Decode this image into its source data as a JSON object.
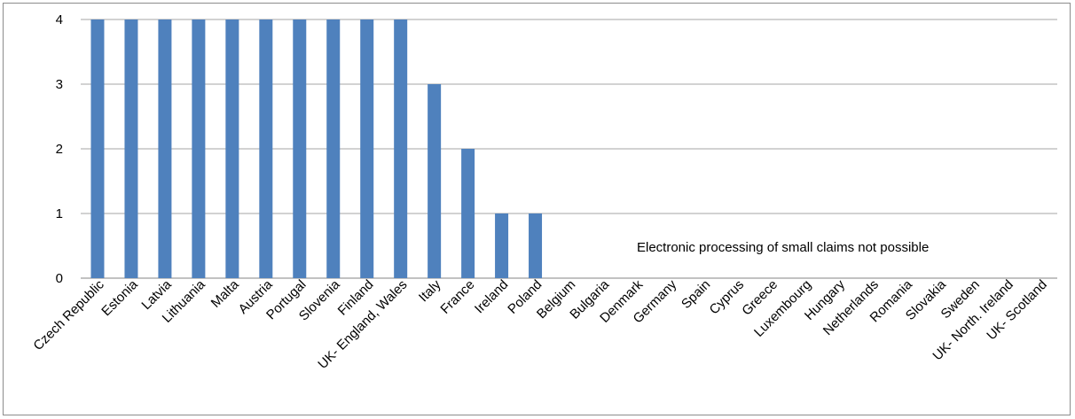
{
  "chart_data": {
    "type": "bar",
    "categories": [
      "Czech Republic",
      "Estonia",
      "Latvia",
      "Lithuania",
      "Malta",
      "Austria",
      "Portugal",
      "Slovenia",
      "Finland",
      "UK- England, Wales",
      "Italy",
      "France",
      "Ireland",
      "Poland",
      "Belgium",
      "Bulgaria",
      "Denmark",
      "Germany",
      "Spain",
      "Cyprus",
      "Greece",
      "Luxembourg",
      "Hungary",
      "Netherlands",
      "Romania",
      "Slovakia",
      "Sweden",
      "UK- North. Ireland",
      "UK- Scotland"
    ],
    "values": [
      4,
      4,
      4,
      4,
      4,
      4,
      4,
      4,
      4,
      4,
      3,
      2,
      1,
      1,
      0,
      0,
      0,
      0,
      0,
      0,
      0,
      0,
      0,
      0,
      0,
      0,
      0,
      0,
      0
    ],
    "ylim": [
      0,
      4
    ],
    "yticks": [
      "0",
      "1",
      "2",
      "3",
      "4"
    ],
    "grid": true,
    "legend": "none",
    "annotation": "Electronic processing of small claims not possible",
    "colors": {
      "bar": "#4f81bd",
      "grid": "#a6a6a6",
      "axis": "#868686"
    }
  }
}
